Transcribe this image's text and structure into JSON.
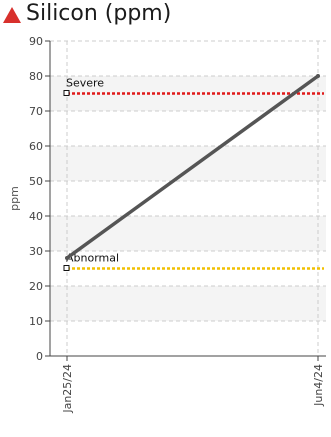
{
  "header": {
    "title": "Silicon (ppm)",
    "status_icon": "warning-triangle-icon",
    "status_color": "#d8302c"
  },
  "chart_data": {
    "type": "line",
    "ylabel": "ppm",
    "ylim": [
      0,
      90
    ],
    "yticks": [
      0,
      10,
      20,
      30,
      40,
      50,
      60,
      70,
      80,
      90
    ],
    "categories": [
      "Jan25/24",
      "Jun4/24"
    ],
    "series": [
      {
        "values": [
          28,
          80
        ],
        "color": "#555555"
      }
    ],
    "limits": [
      {
        "label": "Severe",
        "value": 75,
        "color": "#e01919"
      },
      {
        "label": "Abnormal",
        "value": 25,
        "color": "#f2c100"
      }
    ],
    "grid": true
  }
}
